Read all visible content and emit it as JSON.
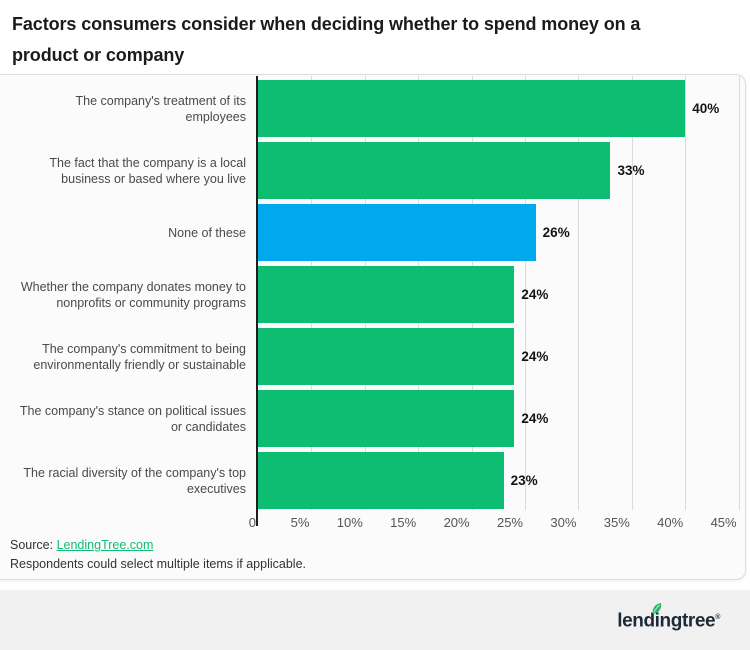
{
  "title": {
    "line1": "Factors consumers consider when deciding whether to spend money on a",
    "line2": "product or company"
  },
  "chart_data": {
    "type": "bar",
    "orientation": "horizontal",
    "title": "Factors consumers consider when deciding whether to spend money on a product or company",
    "categories": [
      "The company's treatment of its\nemployees",
      "The fact that the company is a local\nbusiness or based where you live",
      "None of these",
      "Whether the company donates money to\nnonprofits or community programs",
      "The company's commitment to being\nenvironmentally friendly or sustainable",
      "The company's stance on political issues\nor candidates",
      "The racial diversity of the company's top\nexecutives"
    ],
    "values": [
      40,
      33,
      26,
      24,
      24,
      24,
      23
    ],
    "value_labels": [
      "40%",
      "33%",
      "26%",
      "24%",
      "24%",
      "24%",
      "23%"
    ],
    "bar_colors": [
      "#0dbd72",
      "#0dbd72",
      "#00a9ee",
      "#0dbd72",
      "#0dbd72",
      "#0dbd72",
      "#0dbd72"
    ],
    "x_ticks": [
      0,
      5,
      10,
      15,
      20,
      25,
      30,
      35,
      40,
      45
    ],
    "x_tick_labels": [
      "0",
      "5%",
      "10%",
      "15%",
      "20%",
      "25%",
      "30%",
      "35%",
      "40%",
      "45%"
    ],
    "xlim": [
      0,
      45.8
    ],
    "grid": true,
    "legend": "none",
    "colors": {
      "bar_green": "#0dbd72",
      "bar_highlight_blue": "#00a9ee",
      "gridline": "#dcdcdc",
      "axis": "#1e1e1e"
    }
  },
  "footnote": {
    "source_label": "Source:",
    "source_link": "LendingTree.com",
    "note": "Respondents could select multiple items if applicable."
  },
  "footer": {
    "logo_text": "lendingtree",
    "logo_mark": "®",
    "logo_color": "#1d2b39",
    "leaf_color": "#21ba64",
    "background": "#f1f1f1"
  }
}
